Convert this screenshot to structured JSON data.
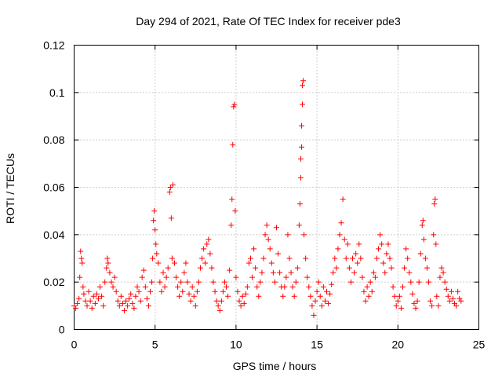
{
  "chart_data": {
    "type": "scatter",
    "title": "Day 294 of 2021, Rate Of TEC Index for receiver pde3",
    "xlabel": "GPS time / hours",
    "ylabel": "ROTI / TECUs",
    "xlim": [
      0,
      25
    ],
    "ylim": [
      0,
      0.12
    ],
    "x_ticks": [
      0,
      5,
      10,
      15,
      20,
      25
    ],
    "x_tick_labels": [
      "0",
      "5",
      "10",
      "15",
      "20",
      "25"
    ],
    "y_ticks": [
      0,
      0.02,
      0.04,
      0.06,
      0.08,
      0.1,
      0.12
    ],
    "y_tick_labels": [
      "0",
      "0.02",
      "0.04",
      "0.06",
      "0.08",
      "0.1",
      "0.12"
    ],
    "grid": true,
    "marker": "+",
    "series_color": "#ff0000",
    "series": [
      {
        "name": "ROTI",
        "points": [
          [
            0.0,
            0.01
          ],
          [
            0.1,
            0.009
          ],
          [
            0.2,
            0.011
          ],
          [
            0.3,
            0.013
          ],
          [
            0.35,
            0.022
          ],
          [
            0.4,
            0.033
          ],
          [
            0.45,
            0.03
          ],
          [
            0.5,
            0.028
          ],
          [
            0.55,
            0.018
          ],
          [
            0.6,
            0.015
          ],
          [
            0.7,
            0.012
          ],
          [
            0.8,
            0.01
          ],
          [
            0.9,
            0.016
          ],
          [
            1.0,
            0.012
          ],
          [
            1.1,
            0.009
          ],
          [
            1.2,
            0.014
          ],
          [
            1.3,
            0.011
          ],
          [
            1.4,
            0.015
          ],
          [
            1.5,
            0.013
          ],
          [
            1.6,
            0.018
          ],
          [
            1.7,
            0.014
          ],
          [
            1.8,
            0.01
          ],
          [
            1.9,
            0.02
          ],
          [
            2.0,
            0.026
          ],
          [
            2.05,
            0.03
          ],
          [
            2.1,
            0.028
          ],
          [
            2.2,
            0.024
          ],
          [
            2.3,
            0.02
          ],
          [
            2.4,
            0.018
          ],
          [
            2.5,
            0.022
          ],
          [
            2.6,
            0.016
          ],
          [
            2.7,
            0.012
          ],
          [
            2.8,
            0.01
          ],
          [
            2.9,
            0.014
          ],
          [
            3.0,
            0.011
          ],
          [
            3.1,
            0.008
          ],
          [
            3.2,
            0.012
          ],
          [
            3.3,
            0.01
          ],
          [
            3.4,
            0.013
          ],
          [
            3.5,
            0.015
          ],
          [
            3.6,
            0.011
          ],
          [
            3.7,
            0.009
          ],
          [
            3.8,
            0.014
          ],
          [
            3.9,
            0.018
          ],
          [
            4.0,
            0.016
          ],
          [
            4.1,
            0.012
          ],
          [
            4.2,
            0.022
          ],
          [
            4.3,
            0.025
          ],
          [
            4.4,
            0.018
          ],
          [
            4.5,
            0.013
          ],
          [
            4.6,
            0.01
          ],
          [
            4.7,
            0.016
          ],
          [
            4.8,
            0.02
          ],
          [
            4.85,
            0.03
          ],
          [
            4.9,
            0.046
          ],
          [
            4.95,
            0.05
          ],
          [
            5.0,
            0.042
          ],
          [
            5.05,
            0.036
          ],
          [
            5.1,
            0.032
          ],
          [
            5.2,
            0.028
          ],
          [
            5.3,
            0.02
          ],
          [
            5.4,
            0.016
          ],
          [
            5.5,
            0.024
          ],
          [
            5.6,
            0.018
          ],
          [
            5.7,
            0.022
          ],
          [
            5.8,
            0.026
          ],
          [
            5.9,
            0.058
          ],
          [
            5.95,
            0.06
          ],
          [
            6.0,
            0.047
          ],
          [
            6.05,
            0.03
          ],
          [
            6.1,
            0.061
          ],
          [
            6.2,
            0.028
          ],
          [
            6.3,
            0.022
          ],
          [
            6.4,
            0.018
          ],
          [
            6.5,
            0.014
          ],
          [
            6.6,
            0.02
          ],
          [
            6.7,
            0.016
          ],
          [
            6.8,
            0.024
          ],
          [
            6.9,
            0.028
          ],
          [
            7.0,
            0.02
          ],
          [
            7.1,
            0.015
          ],
          [
            7.2,
            0.012
          ],
          [
            7.3,
            0.018
          ],
          [
            7.4,
            0.014
          ],
          [
            7.5,
            0.01
          ],
          [
            7.6,
            0.016
          ],
          [
            7.7,
            0.02
          ],
          [
            7.8,
            0.026
          ],
          [
            7.9,
            0.03
          ],
          [
            8.0,
            0.034
          ],
          [
            8.1,
            0.028
          ],
          [
            8.2,
            0.036
          ],
          [
            8.3,
            0.038
          ],
          [
            8.4,
            0.032
          ],
          [
            8.5,
            0.026
          ],
          [
            8.6,
            0.02
          ],
          [
            8.7,
            0.016
          ],
          [
            8.8,
            0.012
          ],
          [
            8.9,
            0.01
          ],
          [
            9.0,
            0.008
          ],
          [
            9.1,
            0.012
          ],
          [
            9.2,
            0.016
          ],
          [
            9.3,
            0.02
          ],
          [
            9.4,
            0.018
          ],
          [
            9.5,
            0.014
          ],
          [
            9.6,
            0.025
          ],
          [
            9.7,
            0.044
          ],
          [
            9.75,
            0.055
          ],
          [
            9.8,
            0.078
          ],
          [
            9.85,
            0.094
          ],
          [
            9.9,
            0.095
          ],
          [
            9.95,
            0.05
          ],
          [
            10.0,
            0.022
          ],
          [
            10.1,
            0.016
          ],
          [
            10.2,
            0.012
          ],
          [
            10.3,
            0.01
          ],
          [
            10.4,
            0.014
          ],
          [
            10.5,
            0.011
          ],
          [
            10.6,
            0.015
          ],
          [
            10.7,
            0.018
          ],
          [
            10.8,
            0.028
          ],
          [
            10.9,
            0.03
          ],
          [
            11.0,
            0.022
          ],
          [
            11.1,
            0.034
          ],
          [
            11.2,
            0.026
          ],
          [
            11.3,
            0.018
          ],
          [
            11.4,
            0.014
          ],
          [
            11.5,
            0.02
          ],
          [
            11.6,
            0.024
          ],
          [
            11.7,
            0.03
          ],
          [
            11.8,
            0.04
          ],
          [
            11.9,
            0.044
          ],
          [
            12.0,
            0.038
          ],
          [
            12.1,
            0.034
          ],
          [
            12.2,
            0.028
          ],
          [
            12.3,
            0.024
          ],
          [
            12.4,
            0.02
          ],
          [
            12.5,
            0.043
          ],
          [
            12.6,
            0.032
          ],
          [
            12.7,
            0.024
          ],
          [
            12.8,
            0.018
          ],
          [
            12.9,
            0.014
          ],
          [
            13.0,
            0.018
          ],
          [
            13.1,
            0.022
          ],
          [
            13.2,
            0.04
          ],
          [
            13.3,
            0.03
          ],
          [
            13.4,
            0.024
          ],
          [
            13.5,
            0.018
          ],
          [
            13.6,
            0.014
          ],
          [
            13.7,
            0.02
          ],
          [
            13.8,
            0.026
          ],
          [
            13.9,
            0.044
          ],
          [
            13.95,
            0.053
          ],
          [
            14.0,
            0.064
          ],
          [
            14.0,
            0.072
          ],
          [
            14.05,
            0.077
          ],
          [
            14.05,
            0.086
          ],
          [
            14.1,
            0.095
          ],
          [
            14.1,
            0.103
          ],
          [
            14.15,
            0.105
          ],
          [
            14.2,
            0.04
          ],
          [
            14.3,
            0.03
          ],
          [
            14.4,
            0.022
          ],
          [
            14.5,
            0.018
          ],
          [
            14.6,
            0.014
          ],
          [
            14.7,
            0.01
          ],
          [
            14.8,
            0.006
          ],
          [
            14.9,
            0.012
          ],
          [
            15.0,
            0.016
          ],
          [
            15.1,
            0.02
          ],
          [
            15.2,
            0.014
          ],
          [
            15.3,
            0.01
          ],
          [
            15.4,
            0.018
          ],
          [
            15.5,
            0.012
          ],
          [
            15.6,
            0.016
          ],
          [
            15.7,
            0.011
          ],
          [
            15.8,
            0.015
          ],
          [
            15.9,
            0.019
          ],
          [
            16.0,
            0.024
          ],
          [
            16.1,
            0.03
          ],
          [
            16.2,
            0.026
          ],
          [
            16.3,
            0.034
          ],
          [
            16.4,
            0.04
          ],
          [
            16.5,
            0.045
          ],
          [
            16.6,
            0.055
          ],
          [
            16.7,
            0.038
          ],
          [
            16.8,
            0.03
          ],
          [
            16.9,
            0.036
          ],
          [
            17.0,
            0.026
          ],
          [
            17.1,
            0.02
          ],
          [
            17.2,
            0.03
          ],
          [
            17.3,
            0.024
          ],
          [
            17.4,
            0.032
          ],
          [
            17.5,
            0.028
          ],
          [
            17.6,
            0.036
          ],
          [
            17.7,
            0.03
          ],
          [
            17.8,
            0.022
          ],
          [
            17.9,
            0.016
          ],
          [
            18.0,
            0.012
          ],
          [
            18.1,
            0.018
          ],
          [
            18.2,
            0.014
          ],
          [
            18.3,
            0.02
          ],
          [
            18.4,
            0.016
          ],
          [
            18.5,
            0.024
          ],
          [
            18.6,
            0.022
          ],
          [
            18.7,
            0.03
          ],
          [
            18.8,
            0.034
          ],
          [
            18.9,
            0.04
          ],
          [
            19.0,
            0.036
          ],
          [
            19.1,
            0.028
          ],
          [
            19.2,
            0.024
          ],
          [
            19.3,
            0.032
          ],
          [
            19.4,
            0.036
          ],
          [
            19.5,
            0.03
          ],
          [
            19.6,
            0.026
          ],
          [
            19.7,
            0.018
          ],
          [
            19.8,
            0.014
          ],
          [
            19.9,
            0.01
          ],
          [
            20.0,
            0.012
          ],
          [
            20.1,
            0.014
          ],
          [
            20.2,
            0.009
          ],
          [
            20.3,
            0.018
          ],
          [
            20.4,
            0.026
          ],
          [
            20.5,
            0.034
          ],
          [
            20.6,
            0.03
          ],
          [
            20.7,
            0.024
          ],
          [
            20.8,
            0.02
          ],
          [
            20.9,
            0.015
          ],
          [
            21.0,
            0.011
          ],
          [
            21.1,
            0.009
          ],
          [
            21.2,
            0.012
          ],
          [
            21.3,
            0.02
          ],
          [
            21.4,
            0.032
          ],
          [
            21.5,
            0.044
          ],
          [
            21.55,
            0.046
          ],
          [
            21.6,
            0.038
          ],
          [
            21.7,
            0.03
          ],
          [
            21.8,
            0.026
          ],
          [
            21.9,
            0.02
          ],
          [
            22.0,
            0.012
          ],
          [
            22.1,
            0.01
          ],
          [
            22.2,
            0.04
          ],
          [
            22.25,
            0.053
          ],
          [
            22.3,
            0.055
          ],
          [
            22.35,
            0.036
          ],
          [
            22.4,
            0.014
          ],
          [
            22.5,
            0.01
          ],
          [
            22.6,
            0.022
          ],
          [
            22.7,
            0.026
          ],
          [
            22.8,
            0.024
          ],
          [
            22.9,
            0.02
          ],
          [
            23.0,
            0.017
          ],
          [
            23.1,
            0.014
          ],
          [
            23.2,
            0.012
          ],
          [
            23.3,
            0.016
          ],
          [
            23.4,
            0.013
          ],
          [
            23.5,
            0.011
          ],
          [
            23.6,
            0.01
          ],
          [
            23.7,
            0.016
          ],
          [
            23.8,
            0.013
          ],
          [
            23.9,
            0.012
          ]
        ]
      }
    ]
  }
}
